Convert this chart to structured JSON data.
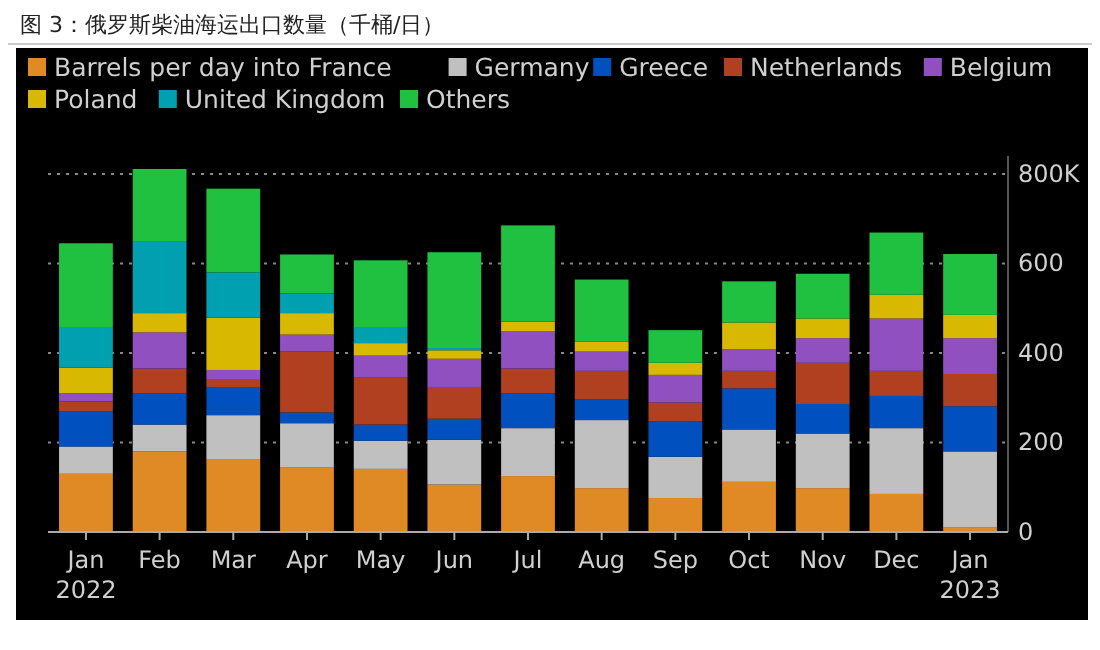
{
  "chart_data": {
    "type": "bar",
    "title": "图 3：俄罗斯柴油海运出口数量（千桶/日）",
    "stacked": true,
    "grid": "y",
    "legend": "top",
    "categories": [
      "Jan\n2022",
      "Feb",
      "Mar",
      "Apr",
      "May",
      "Jun",
      "Jul",
      "Aug",
      "Sep",
      "Oct",
      "Nov",
      "Dec",
      "Jan\n2023"
    ],
    "ylim": [
      0,
      840
    ],
    "yticks": [
      0,
      200,
      400,
      600,
      {
        "value": 800,
        "label": "800K"
      }
    ],
    "series": [
      {
        "name": "Barrels per day into France",
        "color": "#e08a25",
        "values": [
          130,
          180,
          163,
          145,
          141,
          106,
          125,
          98,
          76,
          112,
          98,
          85,
          11
        ]
      },
      {
        "name": "Germany",
        "color": "#c0c0c0",
        "values": [
          61,
          60,
          98,
          98,
          63,
          100,
          107,
          152,
          92,
          117,
          122,
          147,
          169
        ]
      },
      {
        "name": "Greece",
        "color": "#0050c0",
        "values": [
          79,
          70,
          63,
          24,
          36,
          47,
          78,
          46,
          79,
          92,
          66,
          72,
          101
        ]
      },
      {
        "name": "Netherlands",
        "color": "#b04020",
        "values": [
          22,
          55,
          16,
          136,
          106,
          71,
          55,
          64,
          42,
          39,
          92,
          56,
          72
        ]
      },
      {
        "name": "Belgium",
        "color": "#9050c0",
        "values": [
          18,
          81,
          22,
          38,
          48,
          63,
          84,
          43,
          62,
          48,
          55,
          117,
          80
        ]
      },
      {
        "name": "Poland",
        "color": "#d8b800",
        "values": [
          57,
          43,
          117,
          48,
          28,
          19,
          21,
          22,
          27,
          60,
          44,
          53,
          52
        ]
      },
      {
        "name": "United Kingdom",
        "color": "#00a0b0",
        "values": [
          91,
          161,
          101,
          44,
          36,
          5,
          0,
          0,
          0,
          0,
          0,
          0,
          0
        ]
      },
      {
        "name": "Others",
        "color": "#20c040",
        "values": [
          187,
          161,
          187,
          87,
          149,
          214,
          215,
          139,
          73,
          92,
          100,
          139,
          136
        ]
      }
    ]
  }
}
